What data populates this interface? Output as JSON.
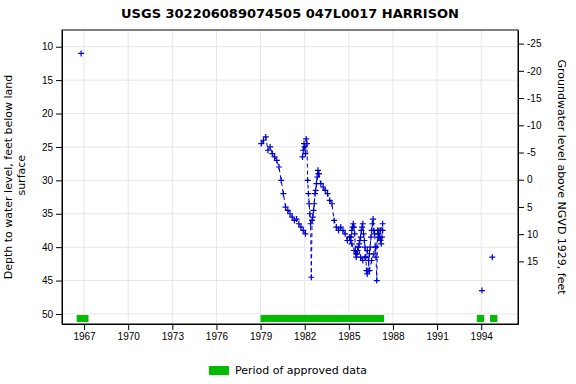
{
  "chart_data": {
    "type": "line",
    "title": "USGS 302206089074505 047L0017  HARRISON",
    "ylabel": "Depth to water level, feet below land\n surface",
    "y2label": "Groundwater level above NGVD 1929, feet",
    "xlim": [
      1965.5,
      1996.5
    ],
    "xticks": [
      1967,
      1970,
      1973,
      1976,
      1979,
      1982,
      1985,
      1988,
      1991,
      1994
    ],
    "ylim": [
      51.5,
      7.5
    ],
    "yticks": [
      10,
      15,
      20,
      25,
      30,
      35,
      40,
      45,
      50
    ],
    "y2lim": [
      26.5,
      -27.5
    ],
    "y2ticks": [
      15,
      10,
      5,
      0,
      -5,
      -10,
      -15,
      -20,
      -25
    ],
    "grid": true,
    "legend": "bottom",
    "series": [
      {
        "color": "#0000cc",
        "line_style": "dashed",
        "marker": "plus",
        "x": [
          1979.05,
          1979.2,
          1979.35,
          1979.5,
          1979.65,
          1979.8,
          1979.95,
          1980.1,
          1980.25,
          1980.4,
          1980.55,
          1980.7,
          1980.85,
          1981.0,
          1981.15,
          1981.3,
          1981.45,
          1981.6,
          1981.75,
          1981.9,
          1982.05
        ],
        "values": [
          24.5,
          24.0,
          23.5,
          25.5,
          25.0,
          26.0,
          26.5,
          27.0,
          28.0,
          30.0,
          32.0,
          34.0,
          34.5,
          35.0,
          35.5,
          36.0,
          35.8,
          36.5,
          37.0,
          37.5,
          38.0
        ]
      },
      {
        "color": "#0000cc",
        "line_style": "dashed",
        "marker": "plus",
        "x": [
          1981.85,
          1981.9,
          1981.95,
          1982.0,
          1982.05,
          1982.1,
          1982.15,
          1982.2,
          1982.25,
          1982.3,
          1982.35,
          1982.4,
          1982.45,
          1982.5,
          1982.55,
          1982.6,
          1982.65,
          1982.7,
          1982.75,
          1982.8,
          1982.85,
          1982.9,
          1982.95
        ],
        "values": [
          26.5,
          25.5,
          24.5,
          25.0,
          26.0,
          23.8,
          24.5,
          30.0,
          32.0,
          33.5,
          35.0,
          36.5,
          44.5,
          36.0,
          35.5,
          34.5,
          33.5,
          32.0,
          31.5,
          30.5,
          29.5,
          28.5,
          29.0
        ]
      },
      {
        "color": "#0000cc",
        "line_style": "dashed",
        "marker": "plus",
        "x": [
          1982.95,
          1983.1,
          1983.25,
          1983.4,
          1983.55,
          1983.7,
          1983.85,
          1984.0,
          1984.15,
          1984.3,
          1984.45,
          1984.6,
          1984.75,
          1984.9,
          1985.05,
          1985.2,
          1985.35,
          1985.5,
          1985.65,
          1985.8,
          1985.95,
          1986.1,
          1986.25,
          1986.4,
          1986.55,
          1986.7,
          1986.85,
          1987.0,
          1987.15,
          1987.3
        ],
        "values": [
          29.0,
          30.5,
          31.0,
          31.5,
          32.0,
          33.0,
          33.5,
          36.0,
          37.0,
          37.5,
          37.0,
          37.5,
          38.0,
          39.0,
          38.5,
          39.5,
          40.5,
          41.0,
          40.0,
          41.5,
          42.0,
          41.5,
          40.5,
          43.5,
          42.0,
          41.0,
          40.0,
          38.5,
          37.5,
          36.5
        ]
      },
      {
        "color": "#0000cc",
        "line_style": "dashed",
        "marker": "plus",
        "x": [
          1985.05,
          1985.1,
          1985.15,
          1985.2,
          1985.25,
          1985.3,
          1985.35,
          1985.4,
          1985.45,
          1985.5,
          1985.55,
          1985.6,
          1985.65,
          1985.7,
          1985.75,
          1985.8,
          1985.85,
          1985.9,
          1985.95,
          1986.0,
          1986.05,
          1986.1,
          1986.15,
          1986.2,
          1986.25,
          1986.3,
          1986.35,
          1986.4,
          1986.45,
          1986.5,
          1986.55,
          1986.6,
          1986.65,
          1986.7,
          1986.75,
          1986.8,
          1986.85,
          1986.9,
          1986.95,
          1987.0,
          1987.05,
          1987.1,
          1987.15,
          1987.2,
          1987.25,
          1987.3
        ],
        "values": [
          38.5,
          39.0,
          38.5,
          37.5,
          37.0,
          36.5,
          37.0,
          38.0,
          40.5,
          41.5,
          41.0,
          40.5,
          40.0,
          39.5,
          39.0,
          38.5,
          37.5,
          37.0,
          36.5,
          38.0,
          39.0,
          40.0,
          41.5,
          43.5,
          44.0,
          43.5,
          42.0,
          41.0,
          40.0,
          38.5,
          37.5,
          36.5,
          35.8,
          37.5,
          38.0,
          40.0,
          41.5,
          45.0,
          37.5,
          38.0,
          37.5,
          38.5,
          39.0,
          39.5,
          38.5,
          37.5
        ]
      },
      {
        "color": "#0000cc",
        "line_style": "none",
        "marker": "plus",
        "x": [
          1966.8,
          1994.05,
          1994.75
        ],
        "values": [
          11.0,
          46.5,
          41.5
        ]
      },
      {
        "name": "Period of approved data",
        "type": "span",
        "color": "#00bb00",
        "start": [
          1966.5,
          1979.0,
          1993.7,
          1994.6
        ],
        "end": [
          1967.3,
          1987.4,
          1994.2,
          1995.1
        ]
      }
    ]
  }
}
